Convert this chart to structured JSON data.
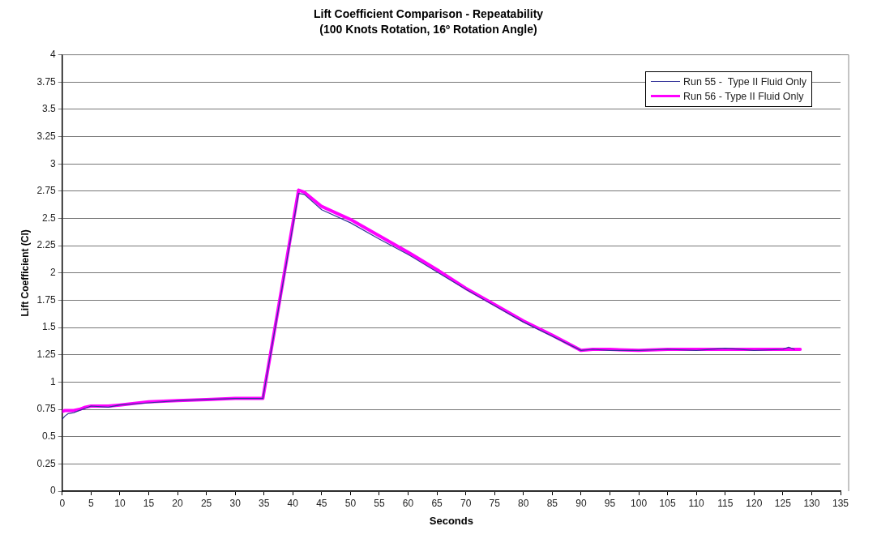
{
  "chart_data": {
    "type": "line",
    "title": "Lift Coefficient Comparison - Repeatability",
    "subtitle": "(100 Knots Rotation, 16º Rotation Angle)",
    "xlabel": "Seconds",
    "ylabel": "Lift Coefficient (Cl)",
    "xlim": [
      0,
      135
    ],
    "xticks": [
      0,
      5,
      10,
      15,
      20,
      25,
      30,
      35,
      40,
      45,
      50,
      55,
      60,
      65,
      70,
      75,
      80,
      85,
      90,
      95,
      100,
      105,
      110,
      115,
      120,
      125,
      130,
      135
    ],
    "ylim": [
      0,
      4
    ],
    "yticks": [
      0,
      0.25,
      0.5,
      0.75,
      1,
      1.25,
      1.5,
      1.75,
      2,
      2.25,
      2.5,
      2.75,
      3,
      3.25,
      3.5,
      3.75,
      4
    ],
    "grid": "y",
    "legend": "top right",
    "marker": "none",
    "line_style": "solid",
    "series": [
      {
        "name": "Run 55 -  Type II Fluid Only",
        "color": "#333399",
        "x": [
          0,
          0.5,
          1,
          2,
          3,
          4,
          5,
          8,
          10,
          15,
          20,
          25,
          30,
          34.8,
          41,
          42,
          45,
          50,
          55,
          60,
          65,
          70,
          75,
          80,
          85,
          90,
          92,
          95,
          100,
          105,
          110,
          115,
          120,
          125,
          126,
          127
        ],
        "values": [
          0.66,
          0.69,
          0.71,
          0.72,
          0.74,
          0.76,
          0.78,
          0.77,
          0.79,
          0.81,
          0.83,
          0.84,
          0.85,
          0.85,
          2.73,
          2.72,
          2.58,
          2.46,
          2.31,
          2.17,
          2.01,
          1.85,
          1.7,
          1.55,
          1.42,
          1.29,
          1.3,
          1.29,
          1.29,
          1.3,
          1.29,
          1.31,
          1.29,
          1.3,
          1.32,
          1.3
        ]
      },
      {
        "name": "Run 56 - Type II Fluid Only",
        "color": "#ff00ff",
        "x": [
          0,
          0.5,
          1,
          2,
          3,
          4,
          5,
          8,
          10,
          15,
          20,
          25,
          30,
          34.8,
          41,
          42,
          45,
          50,
          55,
          60,
          65,
          70,
          75,
          80,
          85,
          90,
          92,
          95,
          100,
          105,
          110,
          115,
          120,
          125,
          128
        ],
        "values": [
          0.73,
          0.74,
          0.74,
          0.74,
          0.75,
          0.77,
          0.78,
          0.78,
          0.79,
          0.82,
          0.83,
          0.84,
          0.85,
          0.85,
          2.76,
          2.74,
          2.61,
          2.49,
          2.34,
          2.19,
          2.03,
          1.86,
          1.71,
          1.56,
          1.43,
          1.29,
          1.3,
          1.3,
          1.29,
          1.3,
          1.3,
          1.3,
          1.3,
          1.3,
          1.3
        ]
      }
    ]
  }
}
